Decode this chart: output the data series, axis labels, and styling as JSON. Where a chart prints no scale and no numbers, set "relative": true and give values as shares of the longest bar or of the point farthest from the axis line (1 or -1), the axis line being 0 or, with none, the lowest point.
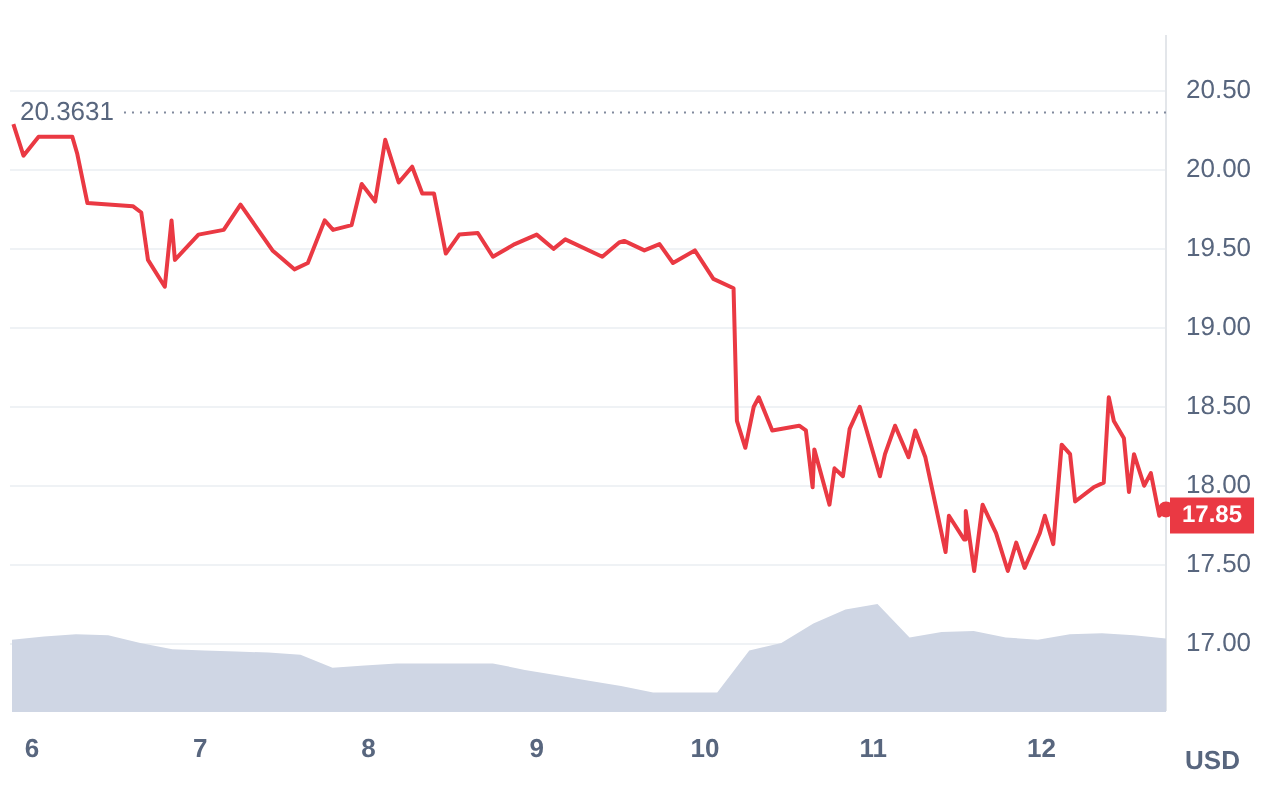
{
  "chart_data": [
    {
      "type": "line",
      "ylabel": "USD",
      "grid": "y",
      "line_style": "solid",
      "xlim": [
        5.87,
        12.74
      ],
      "xticks": [
        6,
        7,
        8,
        9,
        10,
        11,
        12
      ],
      "ylim": [
        16.58,
        20.85
      ],
      "yticks": [
        {
          "value": 17,
          "label": "17.00"
        },
        {
          "value": 17.5,
          "label": "17.50"
        },
        {
          "value": 18,
          "label": "18.00"
        },
        {
          "value": 18.5,
          "label": "18.50"
        },
        {
          "value": 19,
          "label": "19.00"
        },
        {
          "value": 19.5,
          "label": "19.50"
        },
        {
          "value": 20,
          "label": "20.00"
        },
        {
          "value": 20.5,
          "label": "20.50"
        }
      ],
      "ref_lines": [
        {
          "axis": "y",
          "value": 20.3631,
          "label": "20.3631",
          "color": "#808a9d",
          "line_style": "dotted"
        }
      ],
      "annotations": [
        {
          "text": "17.85",
          "x": 12.74,
          "y": 17.85
        }
      ],
      "series": [
        {
          "color": "#ea3943",
          "x": [
            5.89,
            5.95,
            6.04,
            6.24,
            6.27,
            6.33,
            6.6,
            6.65,
            6.69,
            6.79,
            6.83,
            6.85,
            6.99,
            7.14,
            7.24,
            7.43,
            7.56,
            7.64,
            7.74,
            7.79,
            7.9,
            7.96,
            8.04,
            8.1,
            8.18,
            8.26,
            8.32,
            8.39,
            8.46,
            8.54,
            8.65,
            8.74,
            8.87,
            9.0,
            9.1,
            9.17,
            9.39,
            9.49,
            9.52,
            9.64,
            9.73,
            9.81,
            9.94,
            10.05,
            10.17,
            10.19,
            10.24,
            10.29,
            10.32,
            10.4,
            10.56,
            10.6,
            10.64,
            10.65,
            10.74,
            10.77,
            10.82,
            10.86,
            10.92,
            11.04,
            11.07,
            11.13,
            11.21,
            11.25,
            11.31,
            11.43,
            11.45,
            11.54,
            11.55,
            11.6,
            11.65,
            11.73,
            11.8,
            11.85,
            11.9,
            11.99,
            12.02,
            12.07,
            12.12,
            12.17,
            12.2,
            12.31,
            12.37,
            12.4,
            12.43,
            12.49,
            12.52,
            12.55,
            12.61,
            12.65,
            12.7,
            12.74
          ],
          "values": [
            20.29,
            20.09,
            20.21,
            20.21,
            20.1,
            19.79,
            19.77,
            19.73,
            19.43,
            19.26,
            19.68,
            19.43,
            19.59,
            19.62,
            19.78,
            19.49,
            19.37,
            19.41,
            19.68,
            19.62,
            19.65,
            19.91,
            19.8,
            20.19,
            19.92,
            20.02,
            19.85,
            19.85,
            19.47,
            19.59,
            19.6,
            19.45,
            19.53,
            19.59,
            19.5,
            19.56,
            19.45,
            19.54,
            19.55,
            19.49,
            19.53,
            19.41,
            19.49,
            19.31,
            19.25,
            18.41,
            18.24,
            18.5,
            18.56,
            18.35,
            18.38,
            18.35,
            17.99,
            18.23,
            17.88,
            18.11,
            18.06,
            18.36,
            18.5,
            18.06,
            18.2,
            18.38,
            18.18,
            18.35,
            18.18,
            17.58,
            17.81,
            17.66,
            17.84,
            17.46,
            17.88,
            17.7,
            17.46,
            17.64,
            17.48,
            17.7,
            17.81,
            17.63,
            18.26,
            18.2,
            17.9,
            17.99,
            18.02,
            18.56,
            18.41,
            18.3,
            17.96,
            18.2,
            18.0,
            18.08,
            17.81,
            17.85
          ]
        }
      ]
    },
    {
      "type": "area",
      "relative": true,
      "categories": [
        null,
        null,
        null,
        null,
        null,
        null,
        null,
        null,
        null,
        null,
        null,
        null,
        null,
        null,
        null,
        null,
        null,
        null,
        null,
        null,
        null,
        null,
        null,
        null,
        null,
        null,
        null,
        null,
        null,
        null,
        null,
        null,
        null,
        null,
        null,
        null,
        null
      ],
      "series": [
        {
          "color": "#cfd6e4",
          "values": [
            0.67,
            0.7,
            0.72,
            0.71,
            0.64,
            0.58,
            0.57,
            0.56,
            0.55,
            0.53,
            0.41,
            0.43,
            0.45,
            0.45,
            0.45,
            0.45,
            0.39,
            0.34,
            0.29,
            0.24,
            0.18,
            0.18,
            0.18,
            0.57,
            0.64,
            0.82,
            0.95,
            1,
            0.69,
            0.74,
            0.75,
            0.69,
            0.67,
            0.72,
            0.73,
            0.71,
            0.68
          ]
        }
      ]
    }
  ]
}
